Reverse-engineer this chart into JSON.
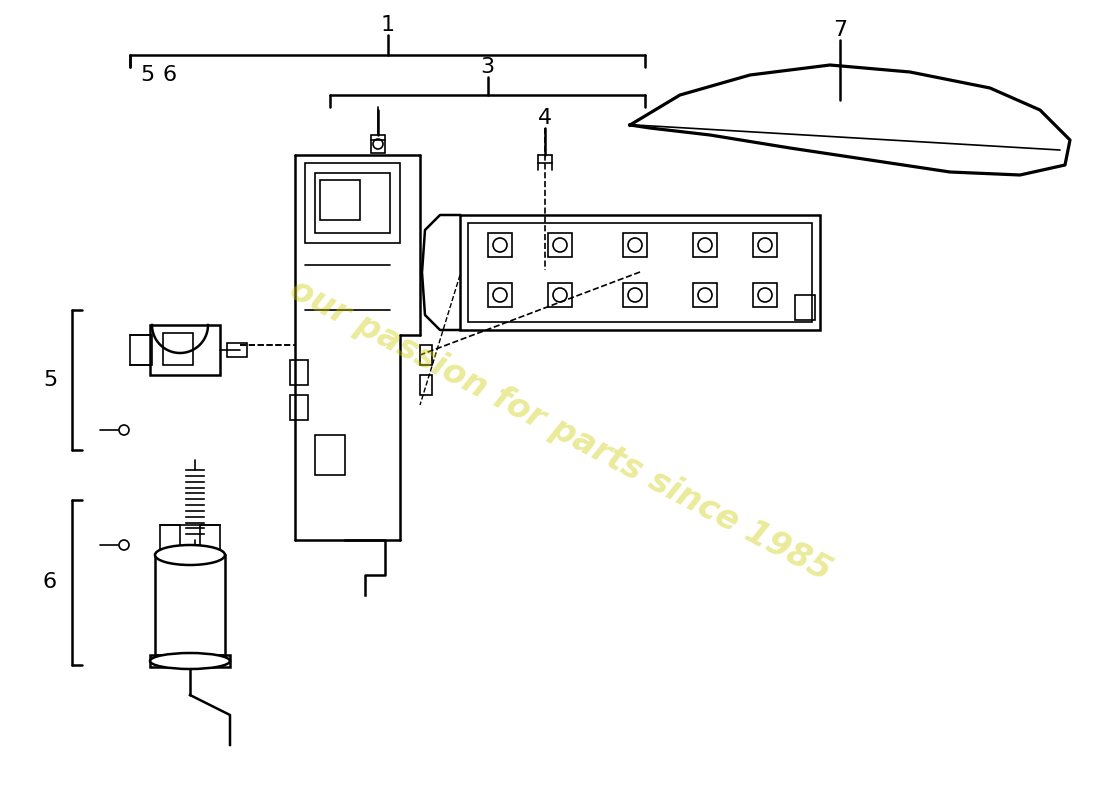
{
  "background_color": "#ffffff",
  "line_color": "#000000",
  "watermark_text": "our passion for parts since 1985",
  "watermark_color": "#cccc00",
  "watermark_alpha": 0.4,
  "fs_num": 16,
  "lw_main": 1.8,
  "lw_thin": 1.2
}
